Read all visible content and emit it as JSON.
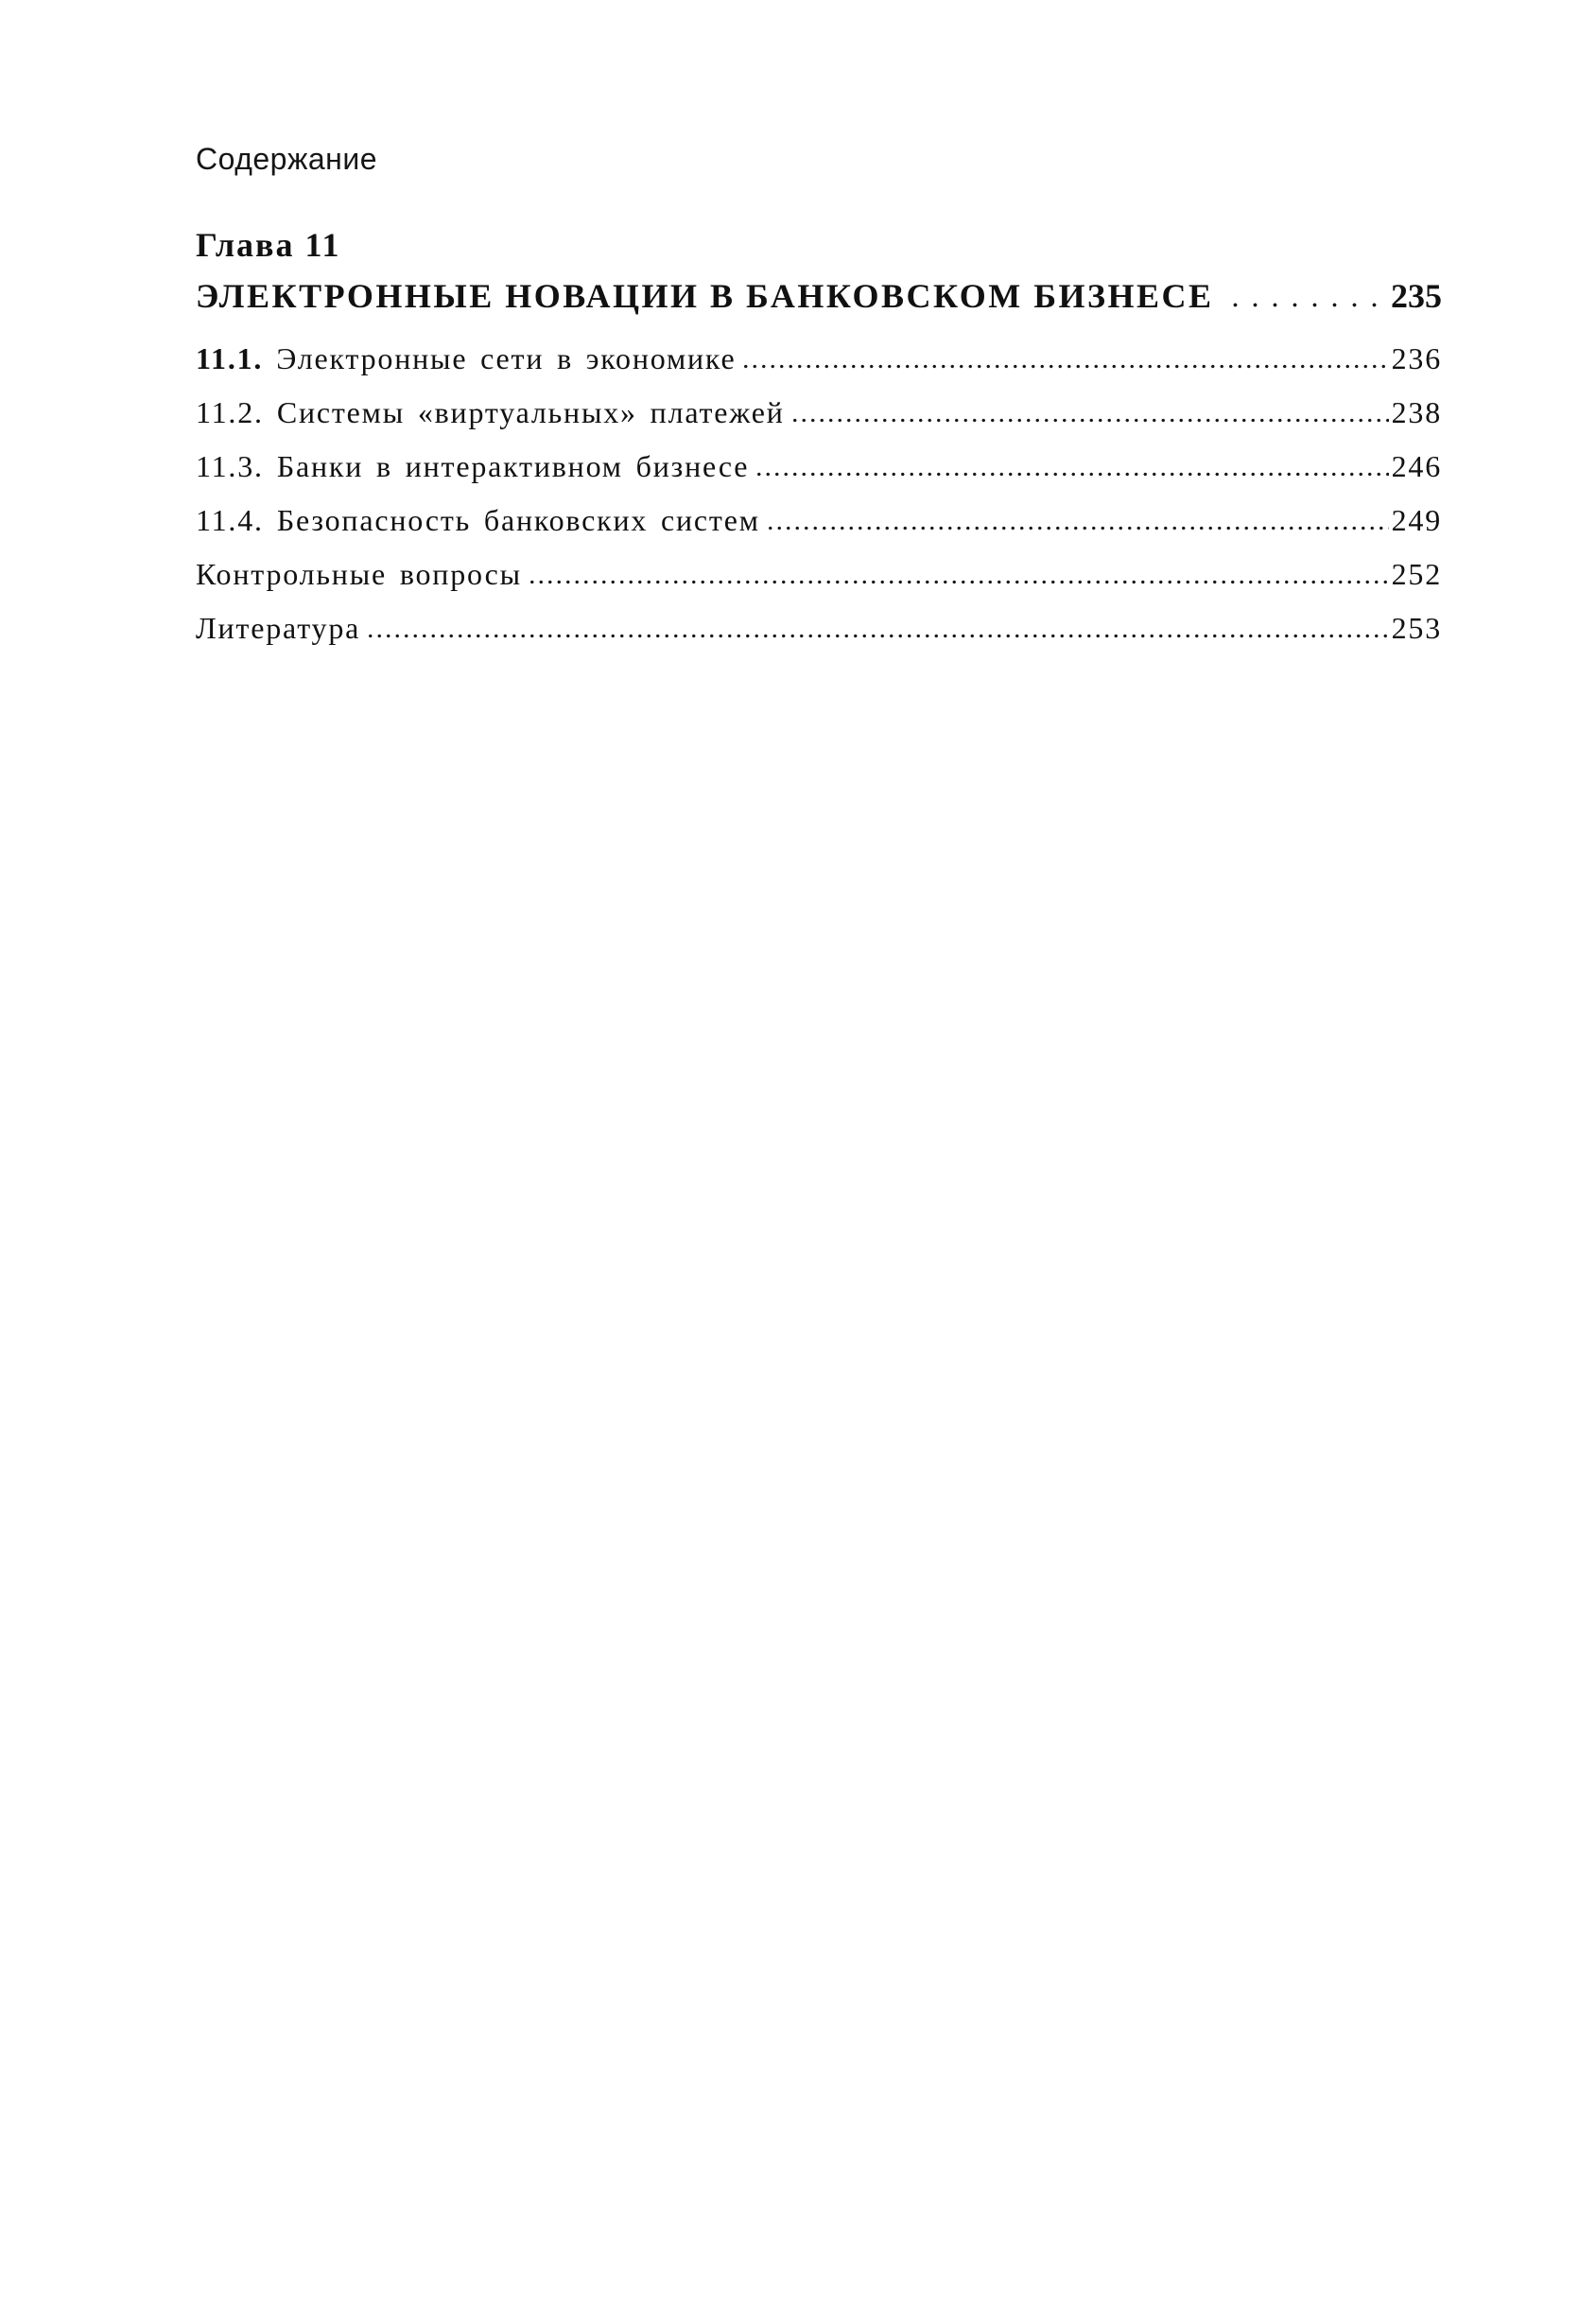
{
  "document": {
    "header": "Содержание",
    "chapter": {
      "label": "Глава 11",
      "title": "ЭЛЕКТРОННЫЕ НОВАЦИИ В БАНКОВСКОМ БИЗНЕСЕ",
      "page": "235"
    },
    "entries": [
      {
        "number": "11.1.",
        "bold_number": true,
        "title": "Электронные сети в экономике",
        "page": "236"
      },
      {
        "number": "11.2.",
        "bold_number": false,
        "title": "Системы «виртуальных» платежей",
        "page": "238"
      },
      {
        "number": "11.3.",
        "bold_number": false,
        "title": "Банки в интерактивном бизнесе",
        "page": "246"
      },
      {
        "number": "11.4.",
        "bold_number": false,
        "title": "Безопасность банковских систем",
        "page": "249"
      },
      {
        "number": "",
        "bold_number": false,
        "title": "Контрольные вопросы",
        "page": "252"
      },
      {
        "number": "",
        "bold_number": false,
        "title": "Литература",
        "page": "253"
      }
    ]
  }
}
